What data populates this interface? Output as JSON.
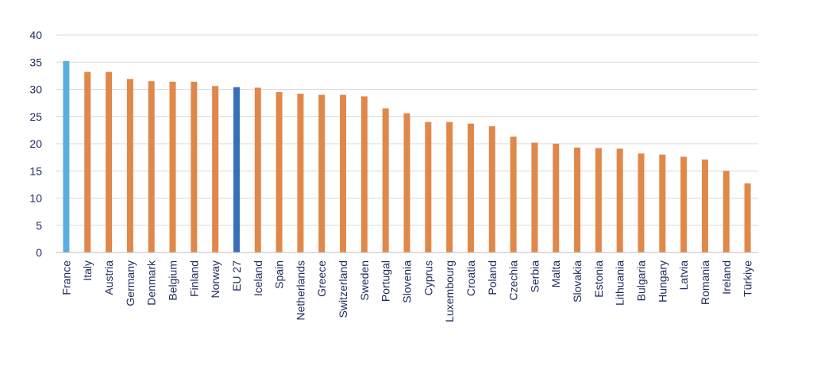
{
  "chart_data": {
    "type": "bar",
    "title": "",
    "xlabel": "",
    "ylabel": "",
    "ylim": [
      0,
      40
    ],
    "yticks": [
      0,
      5,
      10,
      15,
      20,
      25,
      30,
      35,
      40
    ],
    "grid": true,
    "legend": "none",
    "categories": [
      "France",
      "Italy",
      "Austria",
      "Germany",
      "Denmark",
      "Belgium",
      "Finland",
      "Norway",
      "EU 27",
      "Iceland",
      "Spain",
      "Netherlands",
      "Greece",
      "Switzerland",
      "Sweden",
      "Portugal",
      "Slovenia",
      "Cyprus",
      "Luxembourg",
      "Croatia",
      "Poland",
      "Czechia",
      "Serbia",
      "Malta",
      "Slovakia",
      "Estonia",
      "Lithuania",
      "Bulgaria",
      "Hungary",
      "Latvia",
      "Romania",
      "Ireland",
      "Türkiye"
    ],
    "values": [
      35.2,
      33.2,
      33.2,
      31.9,
      31.5,
      31.4,
      31.4,
      30.6,
      30.4,
      30.3,
      29.5,
      29.2,
      29.0,
      29.0,
      28.7,
      26.5,
      25.6,
      24.0,
      24.0,
      23.7,
      23.2,
      21.3,
      20.2,
      20.0,
      19.3,
      19.2,
      19.1,
      18.2,
      18.0,
      17.6,
      17.1,
      15.0,
      12.7
    ],
    "colors": {
      "default": "#e0884a",
      "highlight_first": "#5aaee0",
      "highlight_eu": "#3a6fb8",
      "grid": "#d9d9d9",
      "text": "#1f2a5a"
    },
    "highlights": {
      "France": "highlight_first",
      "EU 27": "highlight_eu"
    }
  }
}
